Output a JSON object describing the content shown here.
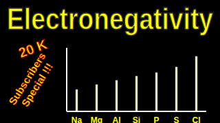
{
  "chart_data": {
    "type": "bar",
    "title": "Electronegativity",
    "annotations": [
      "20 K",
      "Subscribers",
      "Special !!!"
    ],
    "categories": [
      "Na",
      "Mg",
      "Al",
      "Si",
      "P",
      "S",
      "Cl"
    ],
    "values": [
      31,
      38,
      44,
      50,
      55,
      63,
      78
    ],
    "color": "#ffffcc",
    "ylim": [
      0,
      90
    ],
    "tick_labels": "x",
    "grid": false
  }
}
